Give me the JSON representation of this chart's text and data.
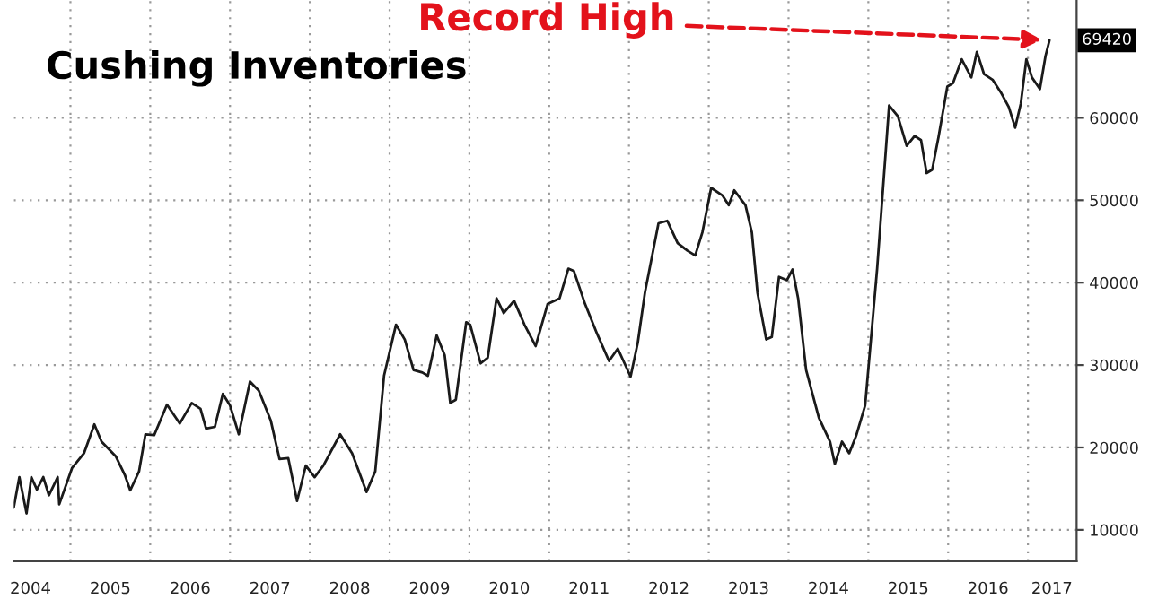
{
  "chart_data": {
    "type": "line",
    "title": "Cushing Inventories",
    "x": [
      2004.29,
      2004.36,
      2004.45,
      2004.51,
      2004.58,
      2004.66,
      2004.73,
      2004.84,
      2004.86,
      2005.02,
      2005.17,
      2005.3,
      2005.39,
      2005.57,
      2005.68,
      2005.75,
      2005.86,
      2005.94,
      2006.05,
      2006.21,
      2006.37,
      2006.52,
      2006.63,
      2006.7,
      2006.81,
      2006.91,
      2007.0,
      2007.11,
      2007.25,
      2007.36,
      2007.51,
      2007.62,
      2007.73,
      2007.84,
      2007.95,
      2008.06,
      2008.17,
      2008.38,
      2008.53,
      2008.71,
      2008.82,
      2008.93,
      2009.08,
      2009.19,
      2009.3,
      2009.41,
      2009.48,
      2009.59,
      2009.69,
      2009.76,
      2009.83,
      2009.96,
      2010.01,
      2010.14,
      2010.23,
      2010.34,
      2010.43,
      2010.56,
      2010.69,
      2010.83,
      2010.98,
      2011.13,
      2011.24,
      2011.31,
      2011.45,
      2011.6,
      2011.75,
      2011.86,
      2012.02,
      2012.11,
      2012.2,
      2012.37,
      2012.48,
      2012.61,
      2012.73,
      2012.83,
      2012.92,
      2013.03,
      2013.17,
      2013.25,
      2013.32,
      2013.46,
      2013.54,
      2013.61,
      2013.72,
      2013.79,
      2013.88,
      2013.98,
      2014.05,
      2014.12,
      2014.22,
      2014.38,
      2014.52,
      2014.58,
      2014.67,
      2014.76,
      2014.85,
      2014.96,
      2015.11,
      2015.26,
      2015.37,
      2015.48,
      2015.58,
      2015.66,
      2015.73,
      2015.8,
      2015.88,
      2015.99,
      2016.06,
      2016.17,
      2016.29,
      2016.36,
      2016.45,
      2016.56,
      2016.66,
      2016.76,
      2016.84,
      2016.91,
      2016.98,
      2017.05,
      2017.15,
      2017.22,
      2017.27
    ],
    "series": [
      {
        "color": "#1a1a1a",
        "values": [
          12700,
          16400,
          12000,
          16400,
          14900,
          16400,
          14200,
          16400,
          13100,
          17500,
          19300,
          22800,
          20700,
          18900,
          16700,
          14800,
          17100,
          21600,
          21500,
          25200,
          22900,
          25400,
          24700,
          22300,
          22500,
          26500,
          25100,
          21600,
          28000,
          26900,
          23300,
          18600,
          18700,
          13500,
          17800,
          16400,
          17800,
          21600,
          19300,
          14600,
          17100,
          28700,
          34900,
          33100,
          29400,
          29100,
          28700,
          33600,
          31200,
          25400,
          25800,
          35200,
          34900,
          30200,
          30900,
          38100,
          36300,
          37800,
          34900,
          32300,
          37400,
          38100,
          41700,
          41400,
          37400,
          33800,
          30500,
          32000,
          28600,
          32700,
          38800,
          47200,
          47500,
          44800,
          43900,
          43300,
          46100,
          51500,
          50600,
          49400,
          51200,
          49400,
          46100,
          38800,
          33100,
          33400,
          40700,
          40300,
          41600,
          38100,
          29400,
          23600,
          20700,
          18000,
          20700,
          19300,
          21500,
          25100,
          41700,
          61500,
          60200,
          56600,
          57800,
          57300,
          53300,
          53700,
          57700,
          63800,
          64200,
          67100,
          64900,
          68000,
          65300,
          64600,
          63100,
          61300,
          58800,
          61700,
          67100,
          64900,
          63500,
          67500,
          69420
        ]
      }
    ],
    "xlim": [
      2004.29,
      2017.61
    ],
    "xticks": [
      {
        "value": 2004.5,
        "label": "2004"
      },
      {
        "value": 2005,
        "label": null
      },
      {
        "value": 2005.5,
        "label": "2005"
      },
      {
        "value": 2006,
        "label": null
      },
      {
        "value": 2006.5,
        "label": "2006"
      },
      {
        "value": 2007,
        "label": null
      },
      {
        "value": 2007.5,
        "label": "2007"
      },
      {
        "value": 2008,
        "label": null
      },
      {
        "value": 2008.5,
        "label": "2008"
      },
      {
        "value": 2009,
        "label": null
      },
      {
        "value": 2009.5,
        "label": "2009"
      },
      {
        "value": 2010,
        "label": null
      },
      {
        "value": 2010.5,
        "label": "2010"
      },
      {
        "value": 2011,
        "label": null
      },
      {
        "value": 2011.5,
        "label": "2011"
      },
      {
        "value": 2012,
        "label": null
      },
      {
        "value": 2012.5,
        "label": "2012"
      },
      {
        "value": 2013,
        "label": null
      },
      {
        "value": 2013.5,
        "label": "2013"
      },
      {
        "value": 2014,
        "label": null
      },
      {
        "value": 2014.5,
        "label": "2014"
      },
      {
        "value": 2015,
        "label": null
      },
      {
        "value": 2015.5,
        "label": "2015"
      },
      {
        "value": 2016,
        "label": null
      },
      {
        "value": 2016.5,
        "label": "2016"
      },
      {
        "value": 2017,
        "label": null
      },
      {
        "value": 2017.3,
        "label": "2017"
      }
    ],
    "ylim": [
      6200,
      74300
    ],
    "yticks": [
      10000,
      20000,
      30000,
      40000,
      50000,
      60000
    ],
    "grid": true,
    "legend": false,
    "line_style": "solid",
    "marker": "none",
    "annotations": [
      {
        "text": "Record High",
        "x": 2017.27,
        "y": 69420
      },
      {
        "text": "69420",
        "x": 2017.27,
        "y": 69420
      }
    ]
  }
}
